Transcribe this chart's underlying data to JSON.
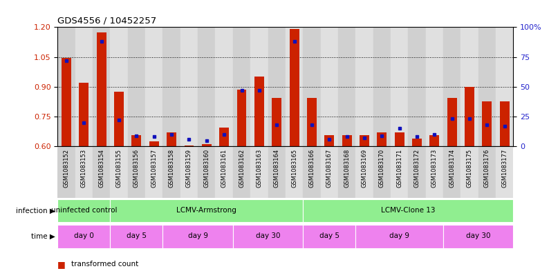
{
  "title": "GDS4556 / 10452257",
  "samples": [
    "GSM1083152",
    "GSM1083153",
    "GSM1083154",
    "GSM1083155",
    "GSM1083156",
    "GSM1083157",
    "GSM1083158",
    "GSM1083159",
    "GSM1083160",
    "GSM1083161",
    "GSM1083162",
    "GSM1083163",
    "GSM1083164",
    "GSM1083165",
    "GSM1083166",
    "GSM1083167",
    "GSM1083168",
    "GSM1083169",
    "GSM1083170",
    "GSM1083171",
    "GSM1083172",
    "GSM1083173",
    "GSM1083174",
    "GSM1083175",
    "GSM1083176",
    "GSM1083177"
  ],
  "red_values": [
    1.045,
    0.92,
    1.175,
    0.875,
    0.655,
    0.625,
    0.67,
    0.605,
    0.61,
    0.695,
    0.885,
    0.95,
    0.845,
    1.19,
    0.845,
    0.655,
    0.655,
    0.655,
    0.67,
    0.67,
    0.64,
    0.655,
    0.845,
    0.9,
    0.825,
    0.825
  ],
  "blue_percentiles": [
    72,
    20,
    88,
    22,
    9,
    8,
    10,
    6,
    5,
    10,
    47,
    47,
    18,
    88,
    18,
    6,
    8,
    7,
    9,
    15,
    8,
    10,
    23,
    23,
    18,
    17
  ],
  "ylim_left": [
    0.6,
    1.2
  ],
  "ylim_right": [
    0,
    100
  ],
  "yticks_left": [
    0.6,
    0.75,
    0.9,
    1.05,
    1.2
  ],
  "yticks_right": [
    0,
    25,
    50,
    75,
    100
  ],
  "inf_groups": [
    {
      "label": "uninfected control",
      "start": 0,
      "end": 3
    },
    {
      "label": "LCMV-Armstrong",
      "start": 3,
      "end": 14
    },
    {
      "label": "LCMV-Clone 13",
      "start": 14,
      "end": 26
    }
  ],
  "time_groups": [
    {
      "label": "day 0",
      "start": 0,
      "end": 3
    },
    {
      "label": "day 5",
      "start": 3,
      "end": 6
    },
    {
      "label": "day 9",
      "start": 6,
      "end": 10
    },
    {
      "label": "day 30",
      "start": 10,
      "end": 14
    },
    {
      "label": "day 5",
      "start": 14,
      "end": 17
    },
    {
      "label": "day 9",
      "start": 17,
      "end": 22
    },
    {
      "label": "day 30",
      "start": 22,
      "end": 26
    }
  ],
  "bar_color": "#CC2200",
  "dot_color": "#1111BB",
  "background_color": "#FFFFFF",
  "bar_width": 0.55,
  "left_label_color": "#CC2200",
  "right_label_color": "#2222CC",
  "inf_color": "#90EE90",
  "time_color": "#EE82EE",
  "col_colors": [
    "#D0D0D0",
    "#E0E0E0"
  ]
}
